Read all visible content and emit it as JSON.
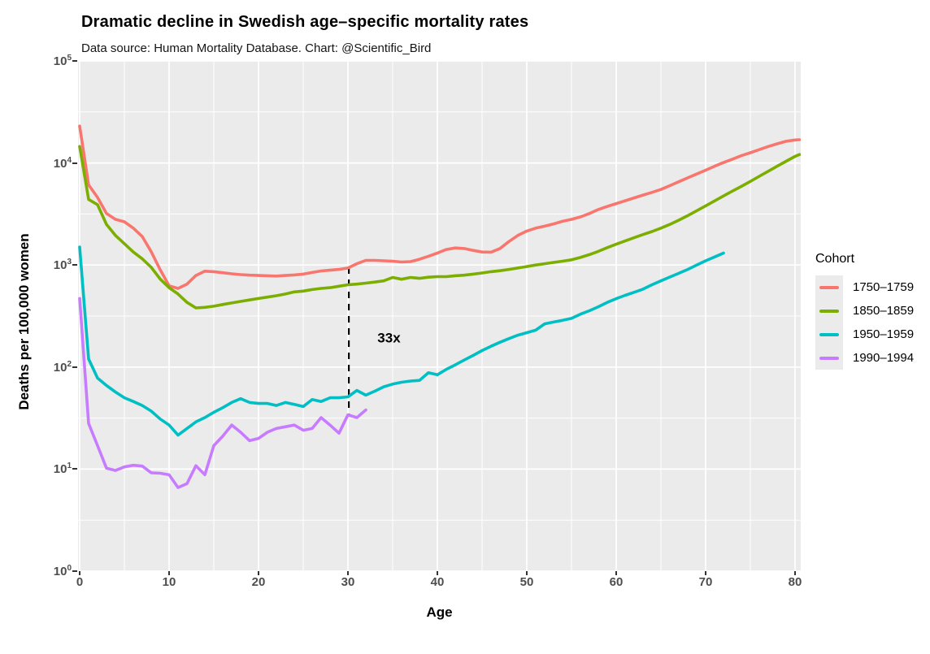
{
  "title": "Dramatic decline in Swedish age–specific mortality rates",
  "subtitle": "Data source: Human Mortality Database. Chart: @Scientific_Bird",
  "x_axis_title": "Age",
  "y_axis_title": "Deaths per 100,000 women",
  "legend": {
    "title": "Cohort",
    "items": [
      {
        "label": "1750–1759",
        "color": "#F8766D"
      },
      {
        "label": "1850–1859",
        "color": "#7CAE00"
      },
      {
        "label": "1950–1959",
        "color": "#00BFC4"
      },
      {
        "label": "1990–1994",
        "color": "#C77CFF"
      }
    ]
  },
  "theme": {
    "panel_bg": "#EBEBEB",
    "grid_color": "#FFFFFF",
    "axis_text_color": "#4D4D4D",
    "tick_color": "#333333",
    "annotation_color": "#000000"
  },
  "chart_data": {
    "type": "line",
    "title": "Dramatic decline in Swedish age–specific mortality rates",
    "subtitle": "Data source: Human Mortality Database. Chart: @Scientific_Bird",
    "xlabel": "Age",
    "ylabel": "Deaths per 100,000 women",
    "log_scale_y": true,
    "x_ticks": [
      0,
      10,
      20,
      30,
      40,
      50,
      60,
      70,
      80
    ],
    "y_tick_exponents": [
      0,
      1,
      2,
      3,
      4,
      5
    ],
    "xlim": [
      0,
      80.8
    ],
    "ylim_log10": [
      0,
      5
    ],
    "grid": "white major and minor gridlines on gray panel",
    "legend_position": "right",
    "legend_title": "Cohort",
    "annotation": {
      "label": "33x",
      "line_x_age": 30.1,
      "line_from_value": 950,
      "line_to_value": 33,
      "label_x_age": 33.3,
      "label_value": 195,
      "style": "black dashed vertical line"
    },
    "series": [
      {
        "name": "1750–1759",
        "color": "#F8766D",
        "points": [
          [
            0,
            23000
          ],
          [
            1,
            6100
          ],
          [
            2,
            4600
          ],
          [
            3,
            3200
          ],
          [
            4,
            2800
          ],
          [
            5,
            2650
          ],
          [
            6,
            2300
          ],
          [
            7,
            1900
          ],
          [
            8,
            1350
          ],
          [
            9,
            900
          ],
          [
            10,
            625
          ],
          [
            11,
            590
          ],
          [
            12,
            650
          ],
          [
            13,
            790
          ],
          [
            14,
            870
          ],
          [
            15,
            860
          ],
          [
            16,
            840
          ],
          [
            17,
            820
          ],
          [
            18,
            805
          ],
          [
            19,
            795
          ],
          [
            20,
            790
          ],
          [
            21,
            785
          ],
          [
            22,
            780
          ],
          [
            23,
            790
          ],
          [
            24,
            800
          ],
          [
            25,
            815
          ],
          [
            26,
            845
          ],
          [
            27,
            875
          ],
          [
            28,
            890
          ],
          [
            29,
            905
          ],
          [
            30,
            935
          ],
          [
            31,
            1030
          ],
          [
            32,
            1110
          ],
          [
            33,
            1110
          ],
          [
            34,
            1100
          ],
          [
            35,
            1090
          ],
          [
            36,
            1070
          ],
          [
            37,
            1080
          ],
          [
            38,
            1140
          ],
          [
            39,
            1220
          ],
          [
            40,
            1310
          ],
          [
            41,
            1420
          ],
          [
            42,
            1470
          ],
          [
            43,
            1450
          ],
          [
            44,
            1390
          ],
          [
            45,
            1340
          ],
          [
            46,
            1335
          ],
          [
            47,
            1450
          ],
          [
            48,
            1700
          ],
          [
            49,
            1950
          ],
          [
            50,
            2150
          ],
          [
            51,
            2300
          ],
          [
            52,
            2400
          ],
          [
            53,
            2530
          ],
          [
            54,
            2680
          ],
          [
            55,
            2800
          ],
          [
            56,
            2960
          ],
          [
            57,
            3200
          ],
          [
            58,
            3500
          ],
          [
            59,
            3750
          ],
          [
            60,
            4000
          ],
          [
            61,
            4260
          ],
          [
            62,
            4550
          ],
          [
            63,
            4850
          ],
          [
            64,
            5150
          ],
          [
            65,
            5500
          ],
          [
            66,
            6000
          ],
          [
            67,
            6550
          ],
          [
            68,
            7150
          ],
          [
            69,
            7800
          ],
          [
            70,
            8500
          ],
          [
            71,
            9300
          ],
          [
            72,
            10100
          ],
          [
            73,
            10900
          ],
          [
            74,
            11800
          ],
          [
            75,
            12600
          ],
          [
            76,
            13500
          ],
          [
            77,
            14500
          ],
          [
            78,
            15400
          ],
          [
            79,
            16300
          ],
          [
            80,
            16800
          ],
          [
            80.5,
            16900
          ]
        ]
      },
      {
        "name": "1850–1859",
        "color": "#7CAE00",
        "points": [
          [
            0,
            14500
          ],
          [
            1,
            4400
          ],
          [
            2,
            3900
          ],
          [
            3,
            2500
          ],
          [
            4,
            1950
          ],
          [
            5,
            1620
          ],
          [
            6,
            1340
          ],
          [
            7,
            1150
          ],
          [
            8,
            950
          ],
          [
            9,
            730
          ],
          [
            10,
            600
          ],
          [
            11,
            520
          ],
          [
            12,
            430
          ],
          [
            13,
            380
          ],
          [
            14,
            385
          ],
          [
            15,
            395
          ],
          [
            16,
            410
          ],
          [
            17,
            425
          ],
          [
            18,
            440
          ],
          [
            19,
            455
          ],
          [
            20,
            470
          ],
          [
            21,
            485
          ],
          [
            22,
            500
          ],
          [
            23,
            520
          ],
          [
            24,
            545
          ],
          [
            25,
            555
          ],
          [
            26,
            575
          ],
          [
            27,
            590
          ],
          [
            28,
            600
          ],
          [
            29,
            620
          ],
          [
            30,
            640
          ],
          [
            31,
            650
          ],
          [
            32,
            665
          ],
          [
            33,
            680
          ],
          [
            34,
            700
          ],
          [
            35,
            755
          ],
          [
            36,
            725
          ],
          [
            37,
            755
          ],
          [
            38,
            740
          ],
          [
            39,
            760
          ],
          [
            40,
            770
          ],
          [
            41,
            770
          ],
          [
            42,
            785
          ],
          [
            43,
            795
          ],
          [
            44,
            815
          ],
          [
            45,
            835
          ],
          [
            46,
            860
          ],
          [
            47,
            880
          ],
          [
            48,
            905
          ],
          [
            49,
            935
          ],
          [
            50,
            965
          ],
          [
            51,
            1000
          ],
          [
            52,
            1030
          ],
          [
            53,
            1060
          ],
          [
            54,
            1090
          ],
          [
            55,
            1125
          ],
          [
            56,
            1185
          ],
          [
            57,
            1265
          ],
          [
            58,
            1360
          ],
          [
            59,
            1480
          ],
          [
            60,
            1600
          ],
          [
            61,
            1720
          ],
          [
            62,
            1850
          ],
          [
            63,
            1990
          ],
          [
            64,
            2130
          ],
          [
            65,
            2300
          ],
          [
            66,
            2500
          ],
          [
            67,
            2750
          ],
          [
            68,
            3050
          ],
          [
            69,
            3400
          ],
          [
            70,
            3800
          ],
          [
            71,
            4250
          ],
          [
            72,
            4750
          ],
          [
            73,
            5300
          ],
          [
            74,
            5900
          ],
          [
            75,
            6600
          ],
          [
            76,
            7400
          ],
          [
            77,
            8300
          ],
          [
            78,
            9300
          ],
          [
            79,
            10400
          ],
          [
            80,
            11600
          ],
          [
            80.5,
            12100
          ]
        ]
      },
      {
        "name": "1950–1959",
        "color": "#00BFC4",
        "points": [
          [
            0,
            1500
          ],
          [
            1,
            120
          ],
          [
            2,
            78
          ],
          [
            3,
            66
          ],
          [
            4,
            57
          ],
          [
            5,
            50
          ],
          [
            6,
            46
          ],
          [
            7,
            42
          ],
          [
            8,
            37
          ],
          [
            9,
            31
          ],
          [
            10,
            27
          ],
          [
            11,
            21.5
          ],
          [
            12,
            25
          ],
          [
            13,
            29
          ],
          [
            14,
            32
          ],
          [
            15,
            36
          ],
          [
            16,
            40
          ],
          [
            17,
            45
          ],
          [
            18,
            49
          ],
          [
            19,
            45
          ],
          [
            20,
            44
          ],
          [
            21,
            44
          ],
          [
            22,
            42
          ],
          [
            23,
            45
          ],
          [
            24,
            43
          ],
          [
            25,
            41
          ],
          [
            26,
            48
          ],
          [
            27,
            46
          ],
          [
            28,
            50
          ],
          [
            29,
            50
          ],
          [
            30,
            51
          ],
          [
            31,
            59
          ],
          [
            32,
            53
          ],
          [
            33,
            58
          ],
          [
            34,
            64
          ],
          [
            35,
            68
          ],
          [
            36,
            71
          ],
          [
            37,
            73
          ],
          [
            38,
            74
          ],
          [
            39,
            88
          ],
          [
            40,
            84
          ],
          [
            41,
            95
          ],
          [
            42,
            105
          ],
          [
            43,
            117
          ],
          [
            44,
            130
          ],
          [
            45,
            145
          ],
          [
            46,
            160
          ],
          [
            47,
            175
          ],
          [
            48,
            190
          ],
          [
            49,
            205
          ],
          [
            50,
            217
          ],
          [
            51,
            230
          ],
          [
            52,
            265
          ],
          [
            53,
            276
          ],
          [
            54,
            287
          ],
          [
            55,
            300
          ],
          [
            56,
            330
          ],
          [
            57,
            356
          ],
          [
            58,
            390
          ],
          [
            59,
            430
          ],
          [
            60,
            468
          ],
          [
            61,
            505
          ],
          [
            62,
            540
          ],
          [
            63,
            580
          ],
          [
            64,
            640
          ],
          [
            65,
            700
          ],
          [
            66,
            762
          ],
          [
            67,
            830
          ],
          [
            68,
            905
          ],
          [
            69,
            1000
          ],
          [
            70,
            1100
          ],
          [
            71,
            1200
          ],
          [
            72,
            1310
          ]
        ]
      },
      {
        "name": "1990–1994",
        "color": "#C77CFF",
        "points": [
          [
            0,
            470
          ],
          [
            1,
            28
          ],
          [
            2,
            17
          ],
          [
            3,
            10.2
          ],
          [
            4,
            9.7
          ],
          [
            5,
            10.5
          ],
          [
            6,
            10.9
          ],
          [
            7,
            10.7
          ],
          [
            8,
            9.2
          ],
          [
            9,
            9.1
          ],
          [
            10,
            8.8
          ],
          [
            11,
            6.6
          ],
          [
            12,
            7.2
          ],
          [
            13,
            10.8
          ],
          [
            14,
            8.8
          ],
          [
            15,
            17
          ],
          [
            16,
            21
          ],
          [
            17,
            27
          ],
          [
            18,
            23
          ],
          [
            19,
            19
          ],
          [
            20,
            20
          ],
          [
            21,
            23
          ],
          [
            22,
            25
          ],
          [
            23,
            26
          ],
          [
            24,
            27
          ],
          [
            25,
            24
          ],
          [
            26,
            25
          ],
          [
            27,
            32
          ],
          [
            28,
            27
          ],
          [
            29,
            22.5
          ],
          [
            30,
            34
          ],
          [
            31,
            32
          ],
          [
            32,
            38
          ]
        ]
      }
    ]
  }
}
